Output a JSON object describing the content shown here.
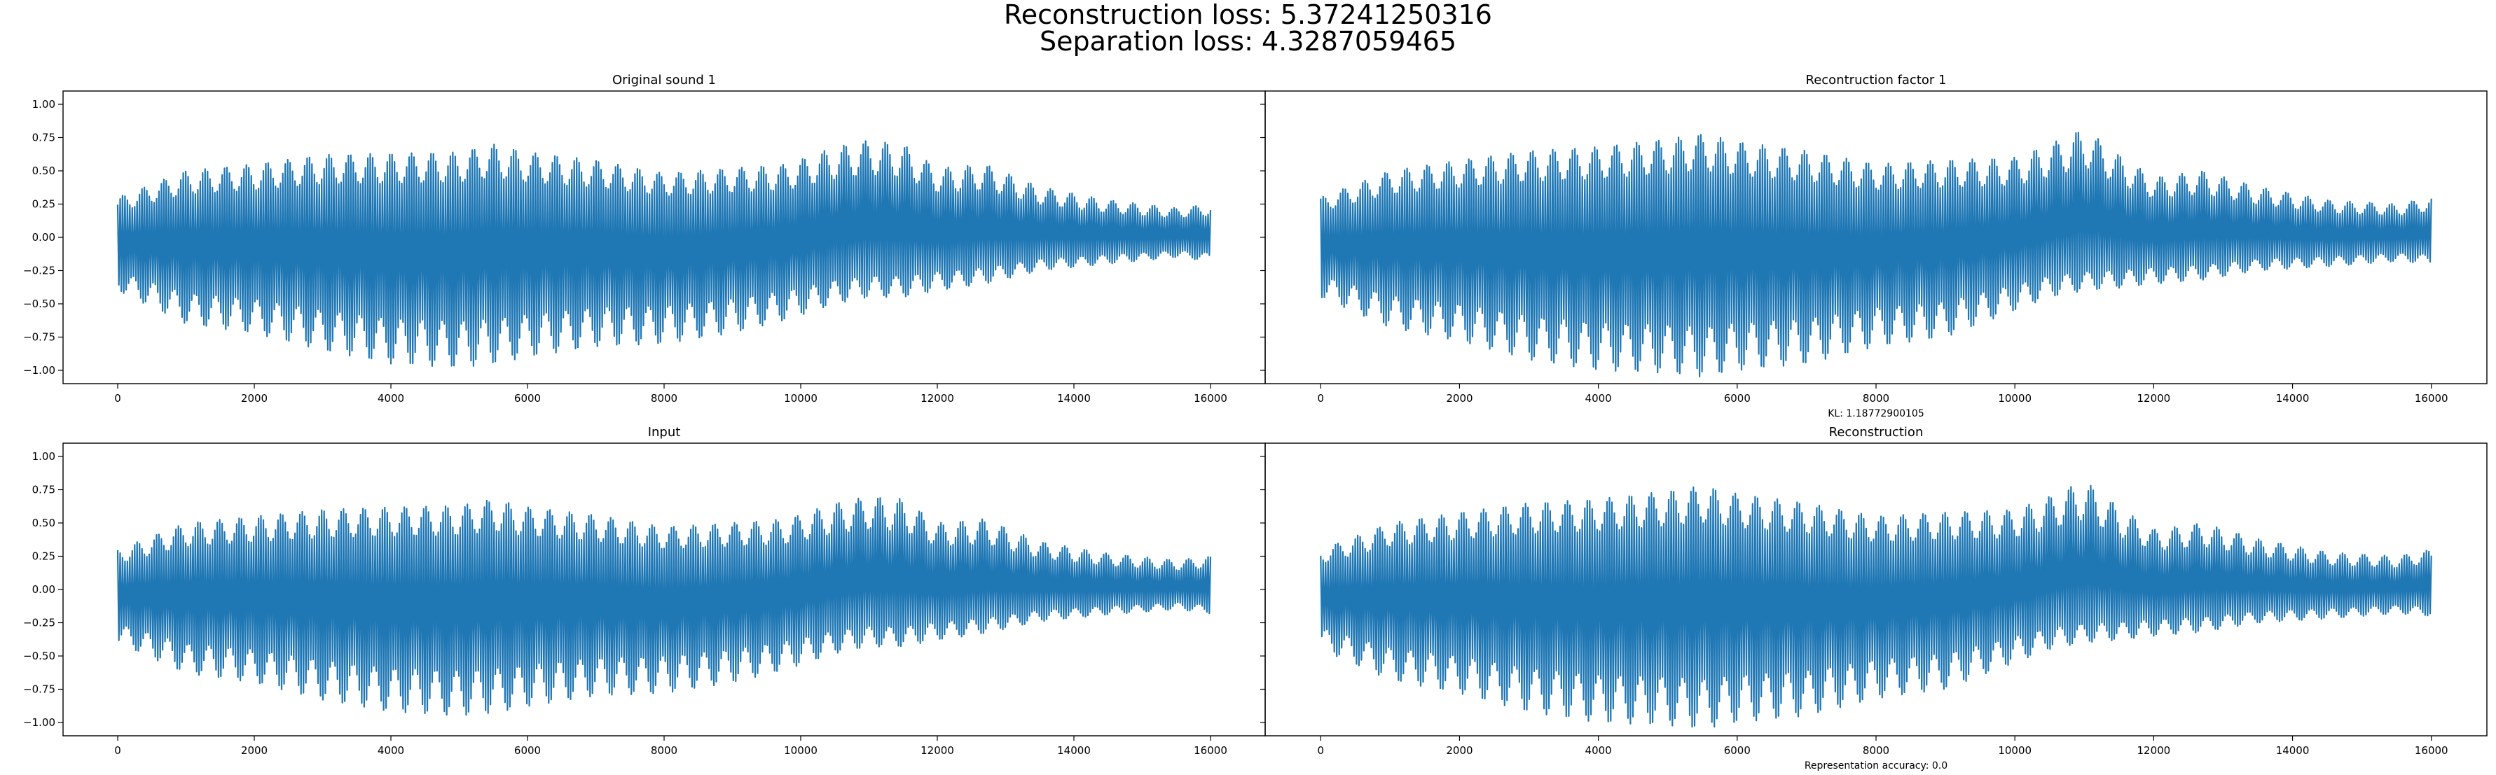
{
  "figure": {
    "suptitle_lines": [
      "Reconstruction loss: 5.37241250316",
      "Separation loss: 4.3287059465"
    ],
    "line_color": "#1f77b4"
  },
  "chart_data": [
    {
      "type": "line",
      "title": "Original sound 1",
      "xlabel": "",
      "ylabel": "",
      "xlim": [
        -800,
        16800
      ],
      "ylim": [
        -1.1,
        1.1
      ],
      "xticks": [
        0,
        2000,
        4000,
        6000,
        8000,
        10000,
        12000,
        14000,
        16000
      ],
      "yticks": [
        -1.0,
        -0.75,
        -0.5,
        -0.25,
        0.0,
        0.25,
        0.5,
        0.75,
        1.0
      ],
      "ytick_labels": [
        "−1.00",
        "−0.75",
        "−0.50",
        "−0.25",
        "0.00",
        "0.25",
        "0.50",
        "0.75",
        "1.00"
      ],
      "show_yticklabels": true,
      "envelope": {
        "x": [
          0,
          1000,
          2000,
          3000,
          4000,
          5000,
          5500,
          6000,
          7000,
          8000,
          9000,
          9800,
          10500,
          11000,
          11500,
          12000,
          12700,
          13500,
          14500,
          15500,
          16000
        ],
        "upper": [
          0.3,
          0.5,
          0.55,
          0.62,
          0.63,
          0.64,
          0.7,
          0.64,
          0.58,
          0.48,
          0.52,
          0.55,
          0.68,
          0.73,
          0.7,
          0.52,
          0.55,
          0.38,
          0.28,
          0.22,
          0.25
        ],
        "lower": [
          -0.4,
          -0.65,
          -0.72,
          -0.85,
          -0.95,
          -0.98,
          -0.95,
          -0.9,
          -0.82,
          -0.8,
          -0.72,
          -0.62,
          -0.5,
          -0.45,
          -0.45,
          -0.4,
          -0.35,
          -0.25,
          -0.2,
          -0.15,
          -0.18
        ]
      }
    },
    {
      "type": "line",
      "title": "Recontruction factor 1",
      "xlabel": "KL: 1.18772900105",
      "ylabel": "",
      "xlim": [
        -800,
        16800
      ],
      "ylim": [
        -1.1,
        1.1
      ],
      "xticks": [
        0,
        2000,
        4000,
        6000,
        8000,
        10000,
        12000,
        14000,
        16000
      ],
      "show_yticklabels": false,
      "envelope": {
        "x": [
          0,
          1000,
          2000,
          3000,
          4000,
          5000,
          5500,
          6000,
          7000,
          8000,
          9000,
          10000,
          10500,
          11000,
          11500,
          12000,
          12700,
          13500,
          14500,
          15500,
          16000
        ],
        "upper": [
          0.3,
          0.5,
          0.58,
          0.65,
          0.68,
          0.74,
          0.78,
          0.72,
          0.65,
          0.55,
          0.58,
          0.6,
          0.7,
          0.82,
          0.62,
          0.45,
          0.5,
          0.38,
          0.28,
          0.25,
          0.3
        ],
        "lower": [
          -0.45,
          -0.68,
          -0.78,
          -0.92,
          -1.0,
          -1.02,
          -1.05,
          -1.0,
          -0.95,
          -0.82,
          -0.75,
          -0.55,
          -0.45,
          -0.4,
          -0.38,
          -0.35,
          -0.32,
          -0.25,
          -0.22,
          -0.18,
          -0.2
        ]
      }
    },
    {
      "type": "line",
      "title": "Input",
      "xlabel": "",
      "ylabel": "",
      "xlim": [
        -800,
        16800
      ],
      "ylim": [
        -1.1,
        1.1
      ],
      "xticks": [
        0,
        2000,
        4000,
        6000,
        8000,
        10000,
        12000,
        14000,
        16000
      ],
      "yticks": [
        -1.0,
        -0.75,
        -0.5,
        -0.25,
        0.0,
        0.25,
        0.5,
        0.75,
        1.0
      ],
      "ytick_labels": [
        "−1.00",
        "−0.75",
        "−0.50",
        "−0.25",
        "0.00",
        "0.25",
        "0.50",
        "0.75",
        "1.00"
      ],
      "show_yticklabels": true,
      "envelope": {
        "x": [
          0,
          1000,
          2000,
          3000,
          4000,
          5000,
          5500,
          6000,
          7000,
          8000,
          9000,
          9800,
          10500,
          11000,
          11500,
          12000,
          12700,
          13500,
          14500,
          15500,
          16000
        ],
        "upper": [
          0.3,
          0.5,
          0.55,
          0.6,
          0.62,
          0.63,
          0.68,
          0.62,
          0.56,
          0.47,
          0.5,
          0.53,
          0.65,
          0.7,
          0.68,
          0.5,
          0.53,
          0.36,
          0.27,
          0.22,
          0.25
        ],
        "lower": [
          -0.4,
          -0.63,
          -0.7,
          -0.83,
          -0.92,
          -0.95,
          -0.93,
          -0.88,
          -0.8,
          -0.78,
          -0.7,
          -0.6,
          -0.48,
          -0.43,
          -0.43,
          -0.38,
          -0.33,
          -0.24,
          -0.19,
          -0.15,
          -0.18
        ]
      }
    },
    {
      "type": "line",
      "title": "Reconstruction",
      "xlabel": "Representation accuracy: 0.0",
      "ylabel": "",
      "xlim": [
        -800,
        16800
      ],
      "ylim": [
        -1.1,
        1.1
      ],
      "xticks": [
        0,
        2000,
        4000,
        6000,
        8000,
        10000,
        12000,
        14000,
        16000
      ],
      "show_yticklabels": false,
      "envelope": {
        "x": [
          0,
          1000,
          2000,
          3000,
          4000,
          5000,
          5500,
          6000,
          7000,
          8000,
          9000,
          10000,
          10500,
          11000,
          11500,
          12000,
          12700,
          13500,
          14500,
          15500,
          16000
        ],
        "upper": [
          0.3,
          0.5,
          0.58,
          0.65,
          0.68,
          0.74,
          0.78,
          0.72,
          0.65,
          0.55,
          0.58,
          0.6,
          0.7,
          0.82,
          0.62,
          0.45,
          0.5,
          0.38,
          0.28,
          0.25,
          0.3
        ],
        "lower": [
          -0.45,
          -0.68,
          -0.78,
          -0.92,
          -1.0,
          -1.02,
          -1.05,
          -1.0,
          -0.95,
          -0.82,
          -0.75,
          -0.55,
          -0.45,
          -0.4,
          -0.38,
          -0.35,
          -0.32,
          -0.25,
          -0.22,
          -0.18,
          -0.2
        ]
      }
    }
  ]
}
